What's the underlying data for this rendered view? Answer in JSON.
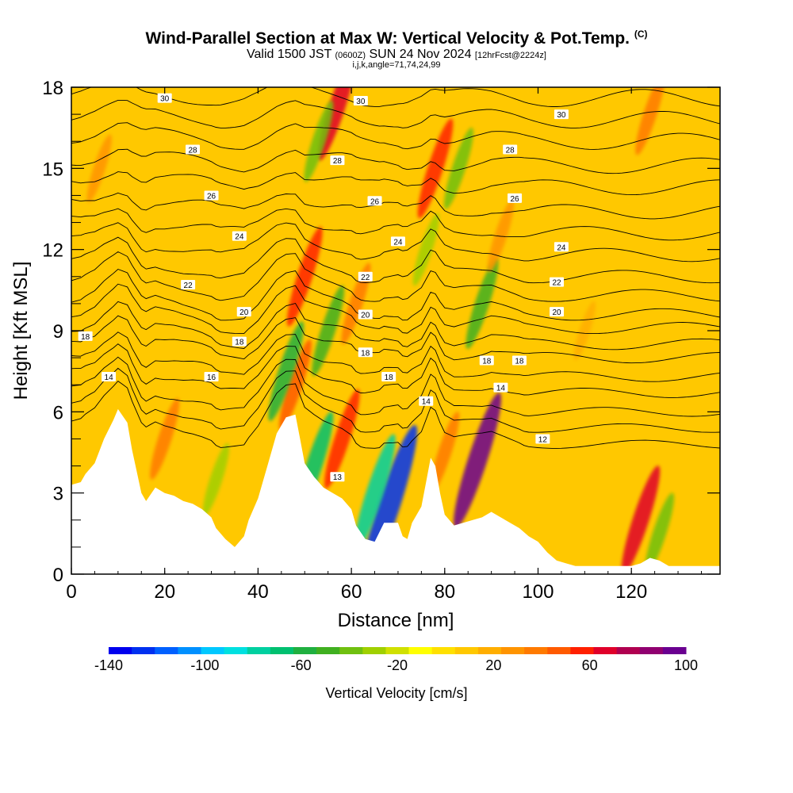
{
  "title": {
    "main": "Wind-Parallel Section at Max W: Vertical Velocity & Pot.Temp.",
    "copyright": "(C)",
    "valid_prefix": "Valid 1500 JST",
    "valid_utc": "(0600Z)",
    "valid_date": "SUN 24 Nov 2024",
    "forecast": "[12hrFcst@2224z]",
    "indices": "i,j,k,angle=71,74,24,99"
  },
  "chart_data": {
    "type": "heatmap",
    "xlabel": "Distance [nm]",
    "ylabel": "Height [Kft MSL]",
    "xlim": [
      0,
      139
    ],
    "ylim": [
      0,
      18
    ],
    "x_ticks": [
      "0",
      "20",
      "40",
      "60",
      "80",
      "100",
      "120"
    ],
    "y_ticks": [
      "0",
      "3",
      "6",
      "9",
      "12",
      "15",
      "18"
    ],
    "background_color": "#ffc800",
    "colorbar": {
      "label": "Vertical Velocity [cm/s]",
      "tick_labels": [
        "-140",
        "-100",
        "-60",
        "-20",
        "20",
        "60",
        "100"
      ],
      "min": -140,
      "max": 100,
      "colors": [
        "#0000ee",
        "#0030f0",
        "#0060ff",
        "#0090ff",
        "#00c8ff",
        "#00e0e0",
        "#00d0a0",
        "#00c070",
        "#20b040",
        "#40b020",
        "#70c010",
        "#a0d000",
        "#d0e000",
        "#ffff00",
        "#ffe000",
        "#ffc800",
        "#ffae00",
        "#ff9400",
        "#ff7a00",
        "#ff5a00",
        "#ff2000",
        "#e0002a",
        "#b00050",
        "#900070",
        "#6a0090"
      ]
    },
    "terrain_profile": {
      "x": [
        0,
        2,
        3,
        5,
        7,
        9,
        10,
        12,
        13,
        14,
        15,
        16,
        18,
        20,
        22,
        24,
        26,
        28,
        30,
        31,
        33,
        35,
        37,
        38,
        40,
        42,
        44,
        46,
        48,
        49,
        50,
        52,
        54,
        56,
        58,
        60,
        61,
        63,
        65,
        67,
        69,
        70,
        71,
        72,
        73,
        75,
        76,
        77,
        78,
        79,
        80,
        82,
        84,
        86,
        88,
        90,
        92,
        94,
        96,
        98,
        100,
        102,
        104,
        106,
        108,
        110,
        112,
        114,
        116,
        118,
        120,
        122,
        124,
        126,
        128,
        130,
        132,
        134,
        136,
        139
      ],
      "y": [
        3.3,
        3.4,
        3.7,
        4.1,
        5.0,
        5.7,
        6.1,
        5.6,
        4.6,
        3.8,
        3.0,
        2.7,
        3.2,
        3.0,
        2.9,
        2.7,
        2.6,
        2.4,
        2.1,
        1.7,
        1.3,
        1.0,
        1.4,
        2.0,
        2.8,
        4.0,
        5.2,
        5.8,
        5.9,
        5.0,
        4.1,
        3.6,
        3.2,
        3.0,
        2.8,
        2.4,
        1.8,
        1.3,
        1.2,
        1.9,
        1.9,
        1.9,
        1.4,
        1.3,
        1.9,
        2.5,
        3.4,
        4.3,
        4.0,
        3.0,
        2.2,
        1.8,
        1.9,
        2.0,
        2.1,
        2.3,
        2.1,
        1.9,
        1.7,
        1.4,
        1.2,
        0.8,
        0.5,
        0.4,
        0.3,
        0.3,
        0.3,
        0.3,
        0.3,
        0.3,
        0.3,
        0.4,
        0.6,
        0.5,
        0.3,
        0.3,
        0.3,
        0.3,
        0.3,
        0.3
      ]
    },
    "vertical_velocity_features": [
      {
        "x": 57,
        "z": 17.3,
        "value": 70
      },
      {
        "x": 53,
        "z": 16.0,
        "value": -40
      },
      {
        "x": 50,
        "z": 11.0,
        "value": 60
      },
      {
        "x": 48,
        "z": 7.0,
        "value": 50
      },
      {
        "x": 46,
        "z": 7.5,
        "value": -60
      },
      {
        "x": 52,
        "z": 4.0,
        "value": -70
      },
      {
        "x": 58,
        "z": 5.0,
        "value": 60
      },
      {
        "x": 55,
        "z": 9.0,
        "value": -50
      },
      {
        "x": 61,
        "z": 10.0,
        "value": 40
      },
      {
        "x": 68,
        "z": 2.5,
        "value": -130
      },
      {
        "x": 65,
        "z": 3.0,
        "value": -80
      },
      {
        "x": 78,
        "z": 15.0,
        "value": 60
      },
      {
        "x": 76,
        "z": 12.0,
        "value": -30
      },
      {
        "x": 80,
        "z": 4.5,
        "value": 40
      },
      {
        "x": 87,
        "z": 4.2,
        "value": 100
      },
      {
        "x": 83,
        "z": 15.0,
        "value": -40
      },
      {
        "x": 88,
        "z": 10.0,
        "value": -50
      },
      {
        "x": 92,
        "z": 12.5,
        "value": 30
      },
      {
        "x": 122,
        "z": 2.0,
        "value": 70
      },
      {
        "x": 126,
        "z": 1.5,
        "value": -40
      },
      {
        "x": 124,
        "z": 17.0,
        "value": 40
      },
      {
        "x": 20,
        "z": 5.0,
        "value": 40
      },
      {
        "x": 31,
        "z": 3.5,
        "value": -30
      },
      {
        "x": 6,
        "z": 15.0,
        "value": 25
      },
      {
        "x": 110,
        "z": 9.0,
        "value": 15
      }
    ],
    "pot_temp_contours": {
      "levels": [
        12,
        13,
        14,
        15,
        16,
        17,
        18,
        19,
        20,
        21,
        22,
        23,
        24,
        25,
        26,
        27,
        28,
        29,
        30
      ],
      "base_heights_kft": [
        4.8,
        5.4,
        6.0,
        6.7,
        7.3,
        8.0,
        8.5,
        9.1,
        9.6,
        10.3,
        11.0,
        11.8,
        12.6,
        13.4,
        14.3,
        15.1,
        16.0,
        16.8,
        17.6
      ],
      "labels": [
        {
          "text": "30",
          "x": 20,
          "z": 17.6
        },
        {
          "text": "30",
          "x": 62,
          "z": 17.5
        },
        {
          "text": "30",
          "x": 105,
          "z": 17.0
        },
        {
          "text": "28",
          "x": 26,
          "z": 15.7
        },
        {
          "text": "28",
          "x": 57,
          "z": 15.3
        },
        {
          "text": "28",
          "x": 94,
          "z": 15.7
        },
        {
          "text": "26",
          "x": 30,
          "z": 14.0
        },
        {
          "text": "26",
          "x": 65,
          "z": 13.8
        },
        {
          "text": "26",
          "x": 95,
          "z": 13.9
        },
        {
          "text": "24",
          "x": 36,
          "z": 12.5
        },
        {
          "text": "24",
          "x": 70,
          "z": 12.3
        },
        {
          "text": "24",
          "x": 105,
          "z": 12.1
        },
        {
          "text": "22",
          "x": 25,
          "z": 10.7
        },
        {
          "text": "22",
          "x": 63,
          "z": 11.0
        },
        {
          "text": "22",
          "x": 104,
          "z": 10.8
        },
        {
          "text": "20",
          "x": 37,
          "z": 9.7
        },
        {
          "text": "20",
          "x": 63,
          "z": 9.6
        },
        {
          "text": "20",
          "x": 104,
          "z": 9.7
        },
        {
          "text": "18",
          "x": 3,
          "z": 8.8
        },
        {
          "text": "18",
          "x": 36,
          "z": 8.6
        },
        {
          "text": "18",
          "x": 63,
          "z": 8.2
        },
        {
          "text": "18",
          "x": 68,
          "z": 7.3
        },
        {
          "text": "18",
          "x": 89,
          "z": 7.9
        },
        {
          "text": "18",
          "x": 96,
          "z": 7.9
        },
        {
          "text": "16",
          "x": 30,
          "z": 7.3
        },
        {
          "text": "14",
          "x": 8,
          "z": 7.3
        },
        {
          "text": "14",
          "x": 76,
          "z": 6.4
        },
        {
          "text": "14",
          "x": 92,
          "z": 6.9
        },
        {
          "text": "12",
          "x": 101,
          "z": 5.0
        },
        {
          "text": "13",
          "x": 57,
          "z": 3.6
        }
      ]
    }
  }
}
